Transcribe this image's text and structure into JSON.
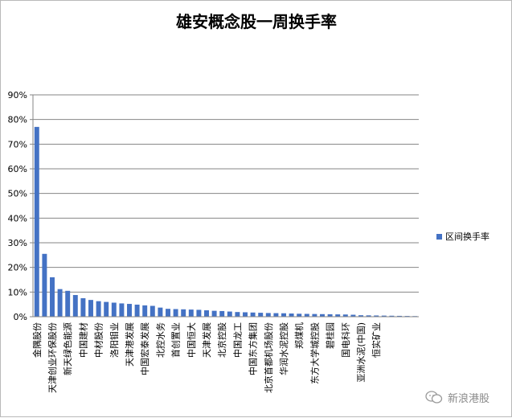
{
  "chart_data": {
    "type": "bar",
    "title": "雄安概念股一周换手率",
    "series": [
      {
        "name": "区间换手率",
        "color": "#4472c4",
        "values": [
          77.0,
          25.5,
          16.0,
          11.2,
          10.5,
          8.8,
          7.5,
          6.8,
          6.3,
          6.0,
          5.7,
          5.4,
          5.2,
          4.9,
          4.6,
          4.4,
          3.7,
          3.2,
          3.1,
          3.0,
          2.9,
          2.8,
          2.6,
          2.4,
          2.3,
          2.1,
          1.9,
          1.8,
          1.7,
          1.6,
          1.5,
          1.45,
          1.4,
          1.3,
          1.2,
          1.15,
          1.1,
          1.05,
          1.0,
          0.95,
          0.9,
          0.8,
          0.6,
          0.55,
          0.5,
          0.45,
          0.4,
          0.35,
          0.3,
          0.25
        ]
      }
    ],
    "categories": [
      "金隅股份",
      "",
      "天津创业环保股份",
      "",
      "新天绿色能源",
      "",
      "中国建材",
      "",
      "中材股份",
      "",
      "洛阳钼业",
      "",
      "天津港发展",
      "",
      "中国宏泰发展",
      "",
      "北控水务",
      "",
      "首创置业",
      "",
      "中国恒大",
      "",
      "天津发展",
      "",
      "北京控股",
      "",
      "中国龙工",
      "",
      "中国东方集团",
      "",
      "北京首都机场股份",
      "",
      "华润水泥控股",
      "",
      "郑煤机",
      "",
      "东方大学城控股",
      "",
      "碧桂园",
      "",
      "国电科环",
      "",
      "亚洲水泥(中国)",
      "",
      "恒实矿业",
      "",
      "",
      "",
      "",
      ""
    ],
    "yaxis": {
      "min": 0,
      "max": 90,
      "step": 10,
      "tick_labels": [
        "0%",
        "10%",
        "20%",
        "30%",
        "40%",
        "50%",
        "60%",
        "70%",
        "80%",
        "90%"
      ]
    },
    "grid": true,
    "legend": "right"
  },
  "watermark": {
    "text": "新浪港股"
  }
}
